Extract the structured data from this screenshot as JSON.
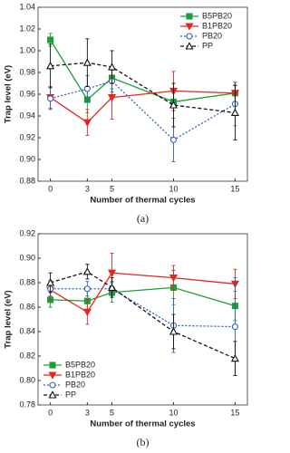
{
  "chart_data": [
    {
      "type": "line",
      "caption": "(a)",
      "xlabel": "Number of thermal cycles",
      "ylabel": "Trap level (eV)",
      "x": [
        0,
        3,
        5,
        10,
        15
      ],
      "xlim": [
        -1,
        16
      ],
      "xticks": [
        0,
        3,
        5,
        10,
        15
      ],
      "ylim": [
        0.88,
        1.04
      ],
      "yticks": [
        0.88,
        {
          "value": 0.9,
          "label": "0.90"
        },
        0.92,
        0.94,
        0.96,
        0.98,
        {
          "value": 1.0,
          "label": "1.00"
        },
        1.02,
        1.04
      ],
      "legend": "upper right",
      "series": [
        {
          "name": "B5PB20",
          "color": "#1e9e3a",
          "marker": "square",
          "filled": true,
          "linestyle": "solid",
          "values": [
            1.01,
            0.955,
            0.975,
            0.953,
            0.961
          ],
          "errors": [
            0.006,
            0.012,
            0.01,
            0.008,
            0.008
          ]
        },
        {
          "name": "B1PB20",
          "color": "#e8241f",
          "marker": "triangle_down",
          "filled": true,
          "linestyle": "solid",
          "values": [
            0.957,
            0.934,
            0.957,
            0.963,
            0.961
          ],
          "errors": [
            0.01,
            0.012,
            0.02,
            0.018,
            0.01
          ]
        },
        {
          "name": "PB20",
          "color": "#2f5fb8",
          "marker": "circle",
          "filled": false,
          "linestyle": "dotted",
          "values": [
            0.956,
            0.965,
            0.972,
            0.918,
            0.951
          ],
          "errors": [
            0.01,
            0.012,
            0.01,
            0.02,
            0.02
          ]
        },
        {
          "name": "PP",
          "color": "#111111",
          "marker": "triangle_up",
          "filled": false,
          "linestyle": "dashed",
          "values": [
            0.986,
            0.989,
            0.985,
            0.95,
            0.943
          ],
          "errors": [
            0.02,
            0.022,
            0.015,
            0.02,
            0.025
          ]
        }
      ]
    },
    {
      "type": "line",
      "caption": "(b)",
      "xlabel": "Number of thermal cycles",
      "ylabel": "Trap level (eV)",
      "x": [
        0,
        3,
        5,
        10,
        15
      ],
      "xlim": [
        -1,
        16
      ],
      "xticks": [
        0,
        3,
        5,
        10,
        15
      ],
      "ylim": [
        0.78,
        0.92
      ],
      "yticks": [
        0.78,
        {
          "value": 0.8,
          "label": "0.80"
        },
        0.82,
        0.84,
        0.86,
        0.88,
        {
          "value": 0.9,
          "label": "0.90"
        },
        0.92
      ],
      "legend": "lower left",
      "series": [
        {
          "name": "B5PB20",
          "color": "#1e9e3a",
          "marker": "square",
          "filled": true,
          "linestyle": "solid",
          "values": [
            0.866,
            0.865,
            0.872,
            0.876,
            0.861
          ],
          "errors": [
            0.006,
            0.008,
            0.008,
            0.014,
            0.012
          ]
        },
        {
          "name": "B1PB20",
          "color": "#e8241f",
          "marker": "triangle_down",
          "filled": true,
          "linestyle": "solid",
          "values": [
            0.874,
            0.856,
            0.888,
            0.884,
            0.879
          ],
          "errors": [
            0.008,
            0.01,
            0.016,
            0.01,
            0.012
          ]
        },
        {
          "name": "PB20",
          "color": "#2f5fb8",
          "marker": "circle",
          "filled": false,
          "linestyle": "dotted",
          "values": [
            0.875,
            0.875,
            0.875,
            0.845,
            0.844
          ],
          "errors": [
            0.006,
            0.006,
            0.006,
            0.022,
            0.04
          ]
        },
        {
          "name": "PP",
          "color": "#111111",
          "marker": "triangle_up",
          "filled": false,
          "linestyle": "dashed",
          "values": [
            0.88,
            0.889,
            0.876,
            0.84,
            0.818
          ],
          "errors": [
            0.008,
            0.006,
            0.008,
            0.014,
            0.014
          ]
        }
      ]
    }
  ]
}
